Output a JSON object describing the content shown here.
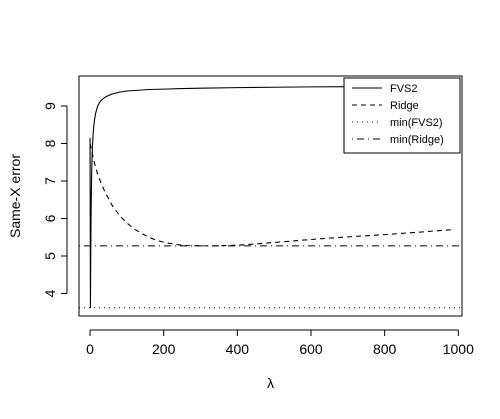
{
  "chart_data": {
    "type": "line",
    "title": "",
    "xlabel": "λ",
    "ylabel": "Same-X error",
    "xlim": [
      -30,
      1010
    ],
    "ylim": [
      3.4,
      9.8
    ],
    "x_ticks": [
      0,
      200,
      400,
      600,
      800,
      1000
    ],
    "y_ticks": [
      4,
      5,
      6,
      7,
      8,
      9
    ],
    "x_tick_labels": [
      "0",
      "200",
      "400",
      "600",
      "800",
      "1000"
    ],
    "y_tick_labels": [
      "4",
      "5",
      "6",
      "7",
      "8",
      "9"
    ],
    "grid": false,
    "legend_position": "top-right",
    "series": [
      {
        "name": "FVS2",
        "style": "solid",
        "color": "#000000",
        "x": [
          0,
          1,
          2,
          3,
          4,
          5,
          6,
          8,
          10,
          12,
          15,
          20,
          25,
          30,
          40,
          50,
          60,
          80,
          100,
          130,
          160,
          200,
          250,
          300,
          400,
          500,
          600,
          700,
          800,
          900,
          980
        ],
        "y": [
          8.15,
          3.62,
          5.2,
          6.3,
          7.0,
          7.45,
          7.8,
          8.2,
          8.45,
          8.62,
          8.8,
          8.98,
          9.08,
          9.15,
          9.23,
          9.28,
          9.32,
          9.37,
          9.4,
          9.42,
          9.44,
          9.45,
          9.465,
          9.475,
          9.49,
          9.5,
          9.51,
          9.515,
          9.52,
          9.52,
          9.52
        ]
      },
      {
        "name": "Ridge",
        "style": "dashed",
        "color": "#000000",
        "x": [
          0,
          5,
          10,
          20,
          30,
          40,
          60,
          80,
          100,
          120,
          140,
          160,
          180,
          200,
          230,
          260,
          300,
          340,
          380,
          420,
          500,
          600,
          700,
          800,
          900,
          980
        ],
        "y": [
          8.0,
          7.8,
          7.55,
          7.2,
          6.95,
          6.72,
          6.35,
          6.08,
          5.88,
          5.72,
          5.6,
          5.5,
          5.42,
          5.37,
          5.31,
          5.28,
          5.27,
          5.27,
          5.28,
          5.3,
          5.36,
          5.44,
          5.51,
          5.57,
          5.64,
          5.7
        ]
      }
    ],
    "reference_lines": [
      {
        "name": "min(FVS2)",
        "orientation": "horizontal",
        "style": "dotted",
        "y": 3.62
      },
      {
        "name": "min(Ridge)",
        "orientation": "horizontal",
        "style": "dotdash",
        "y": 5.27
      }
    ],
    "legend": [
      {
        "label": "FVS2",
        "style": "solid"
      },
      {
        "label": "Ridge",
        "style": "dashed"
      },
      {
        "label": "min(FVS2)",
        "style": "dotted"
      },
      {
        "label": "min(Ridge)",
        "style": "dotdash"
      }
    ]
  }
}
